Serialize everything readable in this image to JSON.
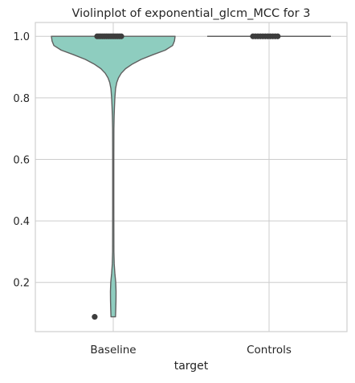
{
  "chart_data": {
    "type": "violin",
    "title": "Violinplot of exponential_glcm_MCC for 3",
    "xlabel": "target",
    "ylabel": "",
    "categories": [
      "Baseline",
      "Controls"
    ],
    "ylim": [
      0.04,
      1.045
    ],
    "yticks": [
      0.2,
      0.4,
      0.6,
      0.8,
      1.0
    ],
    "ytick_labels": [
      "0.2",
      "0.4",
      "0.6",
      "0.8",
      "1.0"
    ],
    "grid": true,
    "colors": {
      "Baseline": "#8ecdbf",
      "Controls": "#fc9f7c",
      "edge": "#5f5f5f",
      "points": "#3d3d3d",
      "grid": "#cccccc",
      "axes": "#cfcfcf"
    },
    "violins": [
      {
        "category": "Baseline",
        "min": 0.088,
        "max": 1.0,
        "profile": [
          [
            1.0,
            1.0
          ],
          [
            0.985,
            0.99
          ],
          [
            0.97,
            0.96
          ],
          [
            0.955,
            0.84
          ],
          [
            0.94,
            0.64
          ],
          [
            0.925,
            0.45
          ],
          [
            0.91,
            0.31
          ],
          [
            0.895,
            0.2
          ],
          [
            0.88,
            0.13
          ],
          [
            0.865,
            0.085
          ],
          [
            0.85,
            0.057
          ],
          [
            0.83,
            0.038
          ],
          [
            0.8,
            0.026
          ],
          [
            0.77,
            0.019
          ],
          [
            0.74,
            0.014
          ],
          [
            0.7,
            0.011
          ],
          [
            0.6,
            0.009
          ],
          [
            0.45,
            0.009
          ],
          [
            0.3,
            0.011
          ],
          [
            0.26,
            0.016
          ],
          [
            0.23,
            0.026
          ],
          [
            0.2,
            0.04
          ],
          [
            0.17,
            0.046
          ],
          [
            0.14,
            0.044
          ],
          [
            0.11,
            0.04
          ],
          [
            0.088,
            0.036
          ]
        ],
        "points": [
          1.0,
          1.0,
          1.0,
          1.0,
          1.0,
          1.0,
          1.0,
          1.0,
          1.0,
          1.0,
          1.0,
          1.0,
          1.0,
          1.0,
          0.088
        ],
        "point_offsets": [
          -0.26,
          -0.23,
          -0.2,
          -0.17,
          -0.14,
          -0.11,
          -0.08,
          -0.05,
          -0.02,
          0.01,
          0.04,
          0.07,
          0.1,
          0.13,
          -0.3
        ]
      },
      {
        "category": "Controls",
        "min": 1.0,
        "max": 1.0,
        "profile": [],
        "points": [
          1.0,
          1.0,
          1.0,
          1.0,
          1.0,
          1.0,
          1.0,
          1.0,
          1.0,
          1.0,
          1.0
        ],
        "point_offsets": [
          -0.26,
          -0.22,
          -0.18,
          -0.14,
          -0.1,
          -0.06,
          -0.02,
          0.02,
          0.06,
          0.1,
          0.14
        ]
      }
    ]
  }
}
